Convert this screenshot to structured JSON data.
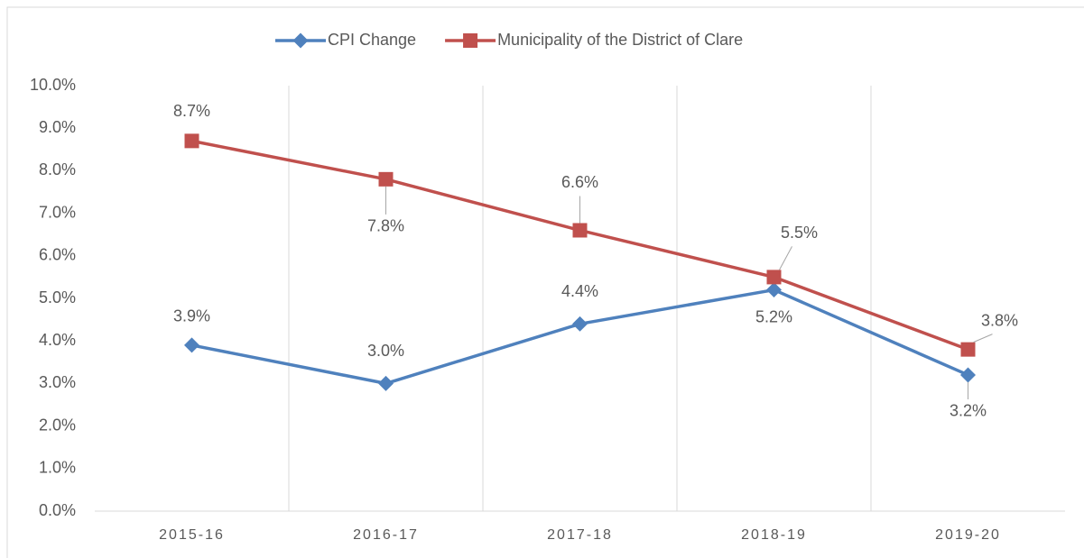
{
  "chart_data": {
    "type": "line",
    "categories": [
      "2015-16",
      "2016-17",
      "2017-18",
      "2018-19",
      "2019-20"
    ],
    "series": [
      {
        "name": "CPI Change",
        "color": "#4f81bd",
        "values": [
          3.9,
          3.0,
          4.4,
          5.2,
          3.2
        ],
        "value_labels": [
          "3.9%",
          "3.0%",
          "4.4%",
          "5.2%",
          "3.2%"
        ]
      },
      {
        "name": "Municipality of the District of Clare",
        "color": "#c0504d",
        "values": [
          8.7,
          7.8,
          6.6,
          5.5,
          3.8
        ],
        "value_labels": [
          "8.7%",
          "7.8%",
          "6.6%",
          "5.5%",
          "3.8%"
        ]
      }
    ],
    "ylim": [
      0,
      10
    ],
    "yticks": [
      {
        "value": 0,
        "label": "0.0%"
      },
      {
        "value": 1,
        "label": "1.0%"
      },
      {
        "value": 2,
        "label": "2.0%"
      },
      {
        "value": 3,
        "label": "3.0%"
      },
      {
        "value": 4,
        "label": "4.0%"
      },
      {
        "value": 5,
        "label": "5.0%"
      },
      {
        "value": 6,
        "label": "6.0%"
      },
      {
        "value": 7,
        "label": "7.0%"
      },
      {
        "value": 8,
        "label": "8.0%"
      },
      {
        "value": 9,
        "label": "9.0%"
      },
      {
        "value": 10,
        "label": "10.0%"
      }
    ],
    "legend": "top"
  }
}
